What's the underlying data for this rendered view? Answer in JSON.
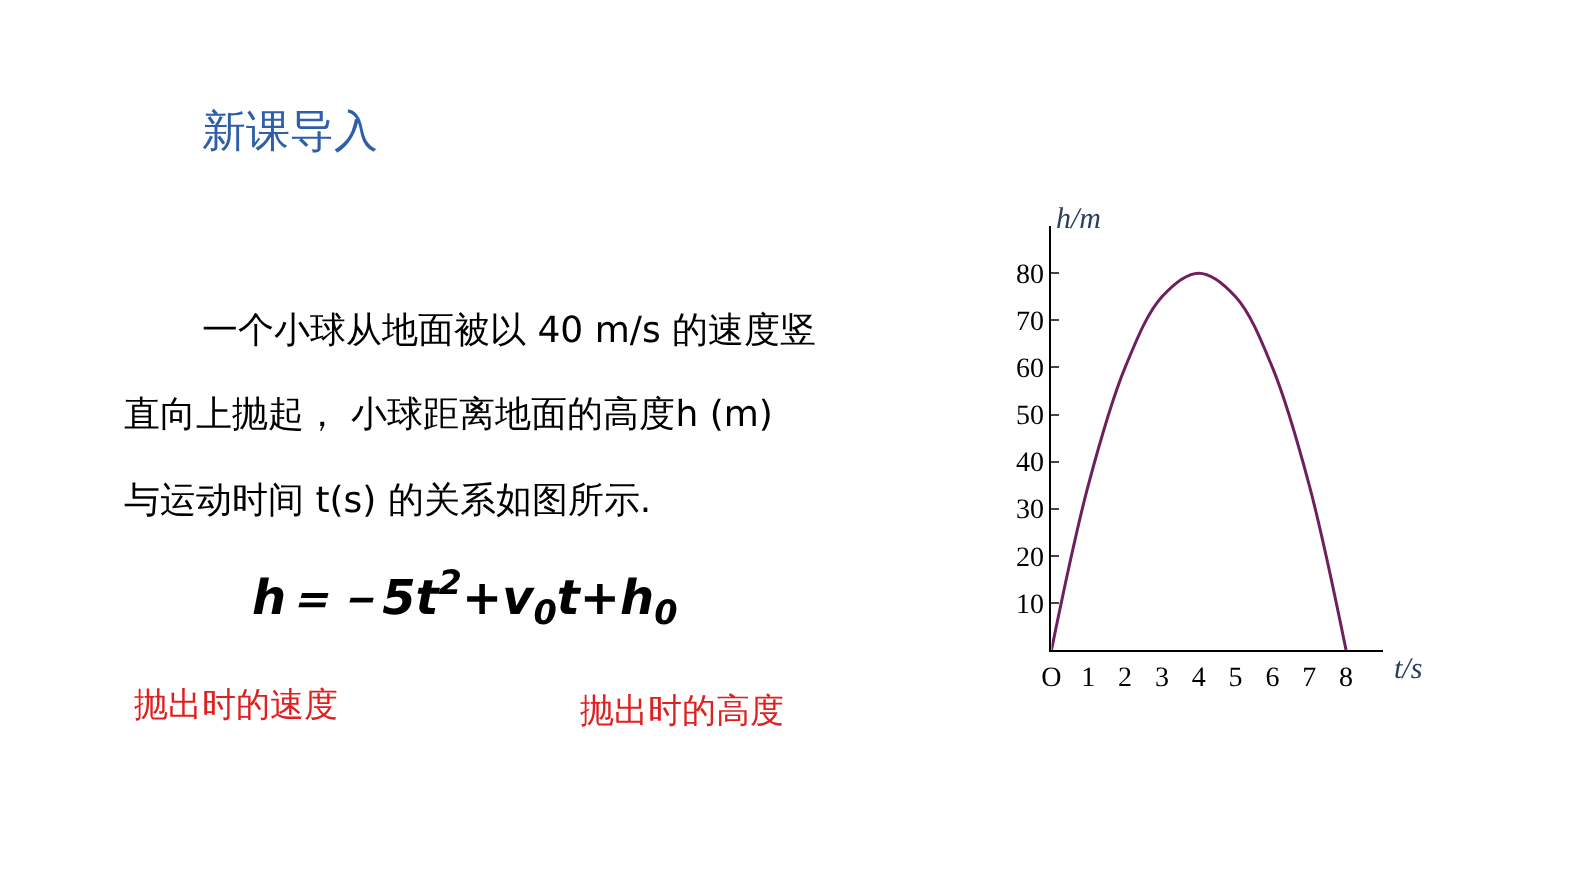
{
  "chart_data": {
    "type": "line",
    "title": "新课导入",
    "xlabel": "t/s",
    "ylabel": "h/m",
    "x": [
      0,
      1,
      2,
      3,
      4,
      5,
      6,
      7,
      8
    ],
    "series": [
      {
        "color": "#6e1f5e",
        "values": [
          0,
          35,
          60,
          75,
          80,
          75,
          60,
          35,
          0
        ]
      }
    ],
    "xlim": [
      0,
      9
    ],
    "ylim": [
      0,
      90
    ],
    "xticks": [
      {
        "value": 0,
        "label": "O"
      },
      1,
      2,
      3,
      4,
      5,
      6,
      7,
      8
    ],
    "yticks": [
      10,
      20,
      30,
      40,
      50,
      60,
      70,
      80
    ],
    "legend": false,
    "marker": "none",
    "line_style": "solid",
    "annotations": [
      "一个小球从地面被以 40 m/s 的速度竖",
      "直向上抛起， 小球距离地面的高度h (m)",
      "与运动时间 t(s) 的关系如图所示.",
      "h＝－5t$^{2}$+v$_{0}$t+h$_{0}$",
      "抛出时的速度",
      "抛出时的高度"
    ]
  }
}
